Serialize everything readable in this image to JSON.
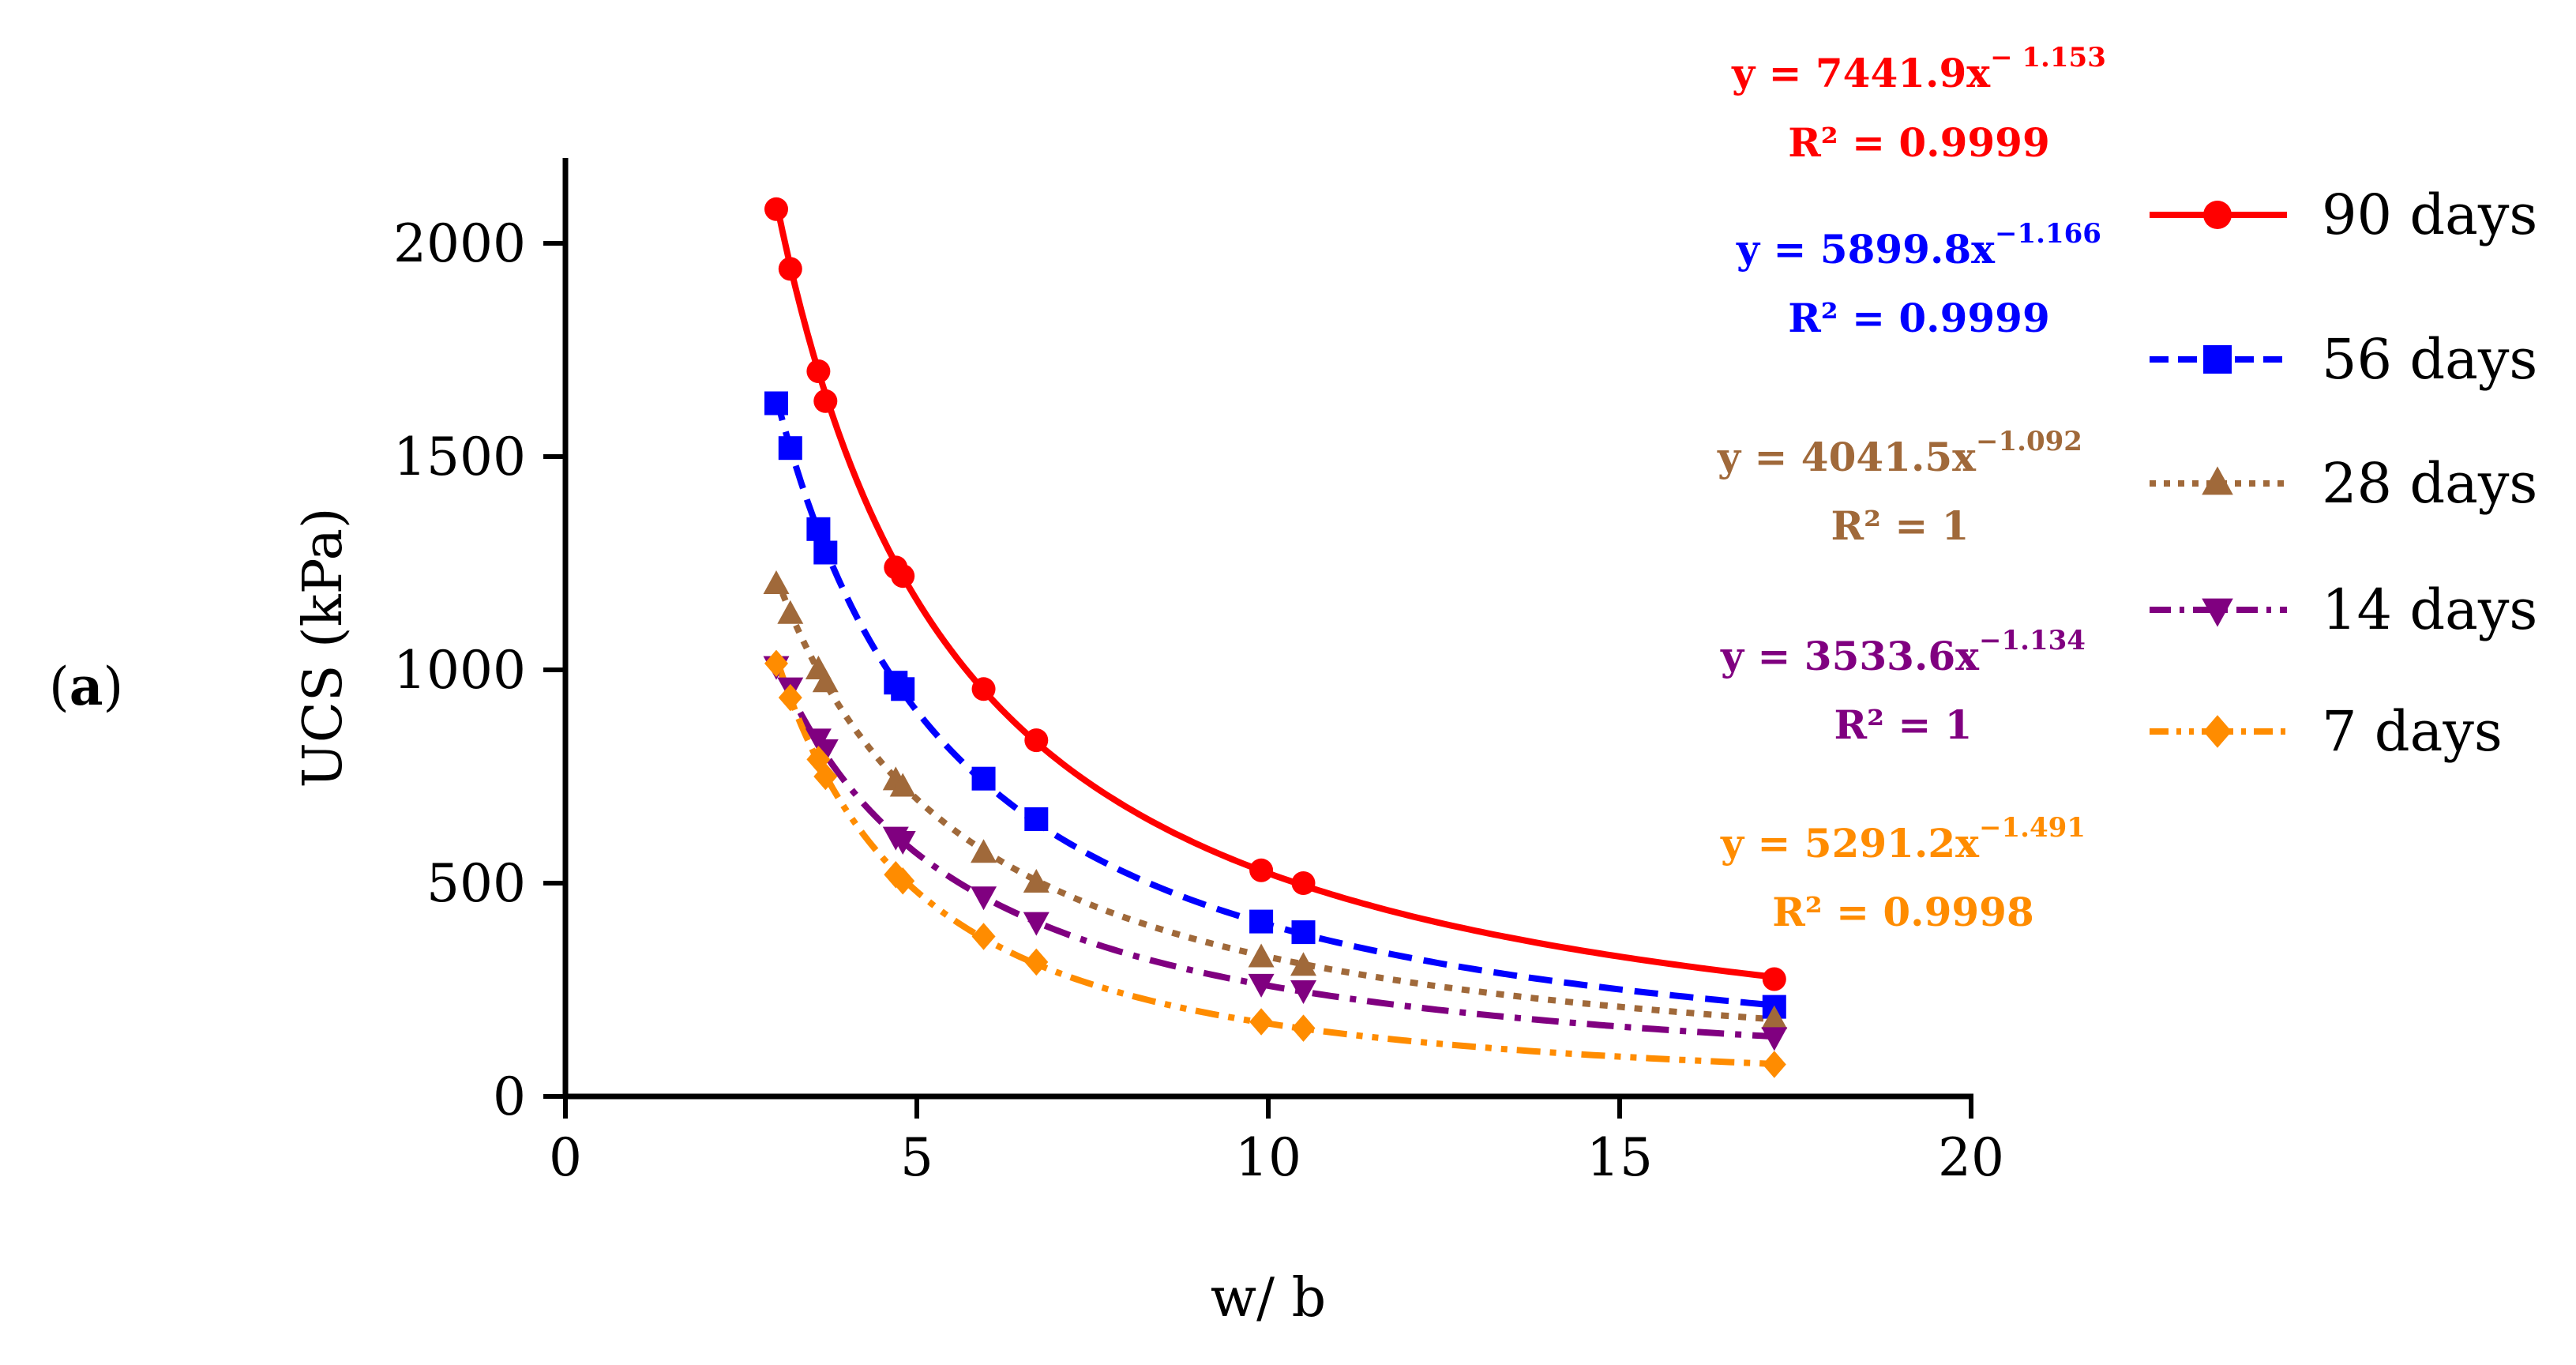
{
  "panel_label": {
    "open": "(",
    "letter": "a",
    "close": ")"
  },
  "chart_data": {
    "type": "line",
    "title": "",
    "xlabel": "w/ b",
    "ylabel": "UCS (kPa)",
    "xlim": [
      0,
      20
    ],
    "ylim": [
      0,
      2200
    ],
    "x_ticks": [
      "0",
      "5",
      "10",
      "15",
      "20"
    ],
    "y_ticks": [
      "0",
      "500",
      "1000",
      "1500",
      "2000"
    ],
    "grid": false,
    "legend_position": "right",
    "series": [
      {
        "name": "90 days",
        "color": "#ff0000",
        "marker": "circle",
        "line": "solid",
        "fit": {
          "a": 7441.9,
          "b": -1.153
        },
        "equation": {
          "prefix": "y = 7441.9x",
          "exponent": "− 1.153"
        },
        "r2": "R² = 0.9999",
        "x": [
          3.0,
          3.2,
          3.6,
          3.7,
          4.7,
          4.8,
          5.95,
          6.7,
          9.9,
          10.5,
          17.2
        ],
        "y": [
          2080,
          1940,
          1700,
          1630,
          1240,
          1220,
          955,
          835,
          530,
          500,
          275
        ]
      },
      {
        "name": "56 days",
        "color": "#0000ff",
        "marker": "square",
        "line": "dashed",
        "fit": {
          "a": 5899.8,
          "b": -1.166
        },
        "equation": {
          "prefix": "y = 5899.8x",
          "exponent": "−1.166"
        },
        "r2": "R² = 0.9999",
        "x": [
          3.0,
          3.2,
          3.6,
          3.7,
          4.7,
          4.8,
          5.95,
          6.7,
          9.9,
          10.5,
          17.2
        ],
        "y": [
          1625,
          1520,
          1330,
          1275,
          970,
          955,
          745,
          650,
          410,
          385,
          210
        ]
      },
      {
        "name": "28 days",
        "color": "#a0693a",
        "marker": "triangle-up",
        "line": "dotted",
        "fit": {
          "a": 4041.5,
          "b": -1.092
        },
        "equation": {
          "prefix": "y = 4041.5x",
          "exponent": "−1.092"
        },
        "r2": "R² = 1",
        "x": [
          3.0,
          3.2,
          3.6,
          3.7,
          4.7,
          4.8,
          5.95,
          6.7,
          9.9,
          10.5,
          17.2
        ],
        "y": [
          1200,
          1130,
          1000,
          970,
          740,
          725,
          570,
          500,
          325,
          305,
          180
        ]
      },
      {
        "name": "14 days",
        "color": "#800080",
        "marker": "triangle-down",
        "line": "dash-dot",
        "fit": {
          "a": 3533.6,
          "b": -1.134
        },
        "equation": {
          "prefix": "y = 3533.6x",
          "exponent": "−1.134"
        },
        "r2": "R² = 1",
        "x": [
          3.0,
          3.2,
          3.6,
          3.7,
          4.7,
          4.8,
          5.95,
          6.7,
          9.9,
          10.5,
          17.2
        ],
        "y": [
          1010,
          960,
          840,
          815,
          610,
          600,
          470,
          410,
          265,
          250,
          140
        ]
      },
      {
        "name": "7 days",
        "color": "#ff8c00",
        "marker": "diamond",
        "line": "dash-dot-dot",
        "fit": {
          "a": 5291.2,
          "b": -1.491
        },
        "equation": {
          "prefix": "y = 5291.2x",
          "exponent": "−1.491"
        },
        "r2": "R² = 0.9998",
        "x": [
          3.0,
          3.2,
          3.6,
          3.7,
          4.7,
          4.8,
          5.95,
          6.7,
          9.9,
          10.5,
          17.2
        ],
        "y": [
          1015,
          935,
          790,
          750,
          520,
          505,
          375,
          315,
          175,
          160,
          75
        ]
      }
    ]
  }
}
